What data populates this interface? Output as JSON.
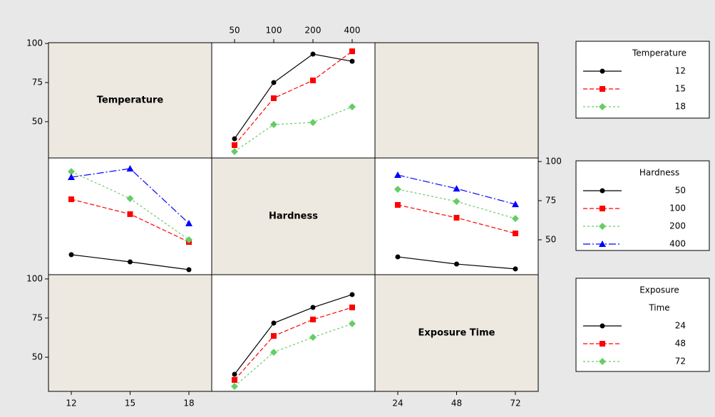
{
  "diagonal_labels": [
    "Temperature",
    "Hardness",
    "Exposure Time"
  ],
  "legends": [
    {
      "title": [
        "Temperature"
      ]
    },
    {
      "title": [
        "Hardness"
      ]
    },
    {
      "title": [
        "Exposure",
        "Time"
      ]
    }
  ],
  "chart_data": [
    {
      "type": "line",
      "categories": [
        50,
        100,
        200,
        400
      ],
      "ylim": [
        26.8,
        100.5
      ],
      "yticks": [
        50,
        75,
        100
      ],
      "series": [
        {
          "name": "12",
          "color": "#000000",
          "marker": "circle",
          "dash": "none",
          "values": [
            39.1,
            75,
            93.2,
            88.6
          ]
        },
        {
          "name": "15",
          "color": "#ff0000",
          "marker": "square",
          "dash": "6,3",
          "values": [
            35,
            65,
            76.4,
            95
          ]
        },
        {
          "name": "18",
          "color": "#66cc66",
          "marker": "diamond",
          "dash": "3,3",
          "values": [
            30.9,
            48.2,
            49.5,
            59.5
          ]
        }
      ]
    },
    {
      "type": "line",
      "categories": [
        12,
        15,
        18
      ],
      "ylim": [
        27.7,
        102.3
      ],
      "yticks": [
        50,
        75,
        100
      ],
      "ytick_side": "right",
      "series": [
        {
          "name": "50",
          "color": "#000000",
          "marker": "circle",
          "dash": "none",
          "values": [
            40.5,
            35.9,
            30.9
          ]
        },
        {
          "name": "100",
          "color": "#ff0000",
          "marker": "square",
          "dash": "6,3",
          "values": [
            75.9,
            66.4,
            48.6
          ]
        },
        {
          "name": "200",
          "color": "#66cc66",
          "marker": "diamond",
          "dash": "3,3",
          "values": [
            93.6,
            76.4,
            50
          ]
        },
        {
          "name": "400",
          "color": "#0000ff",
          "marker": "triangle",
          "dash": "10,3,2,3",
          "values": [
            90,
            95.5,
            60.5
          ]
        }
      ]
    },
    {
      "type": "line",
      "categories": [
        24,
        48,
        72
      ],
      "ylim": [
        27.7,
        102.3
      ],
      "series": [
        {
          "name": "50",
          "color": "#000000",
          "marker": "circle",
          "dash": "none",
          "values": [
            39.1,
            34.5,
            31.4
          ]
        },
        {
          "name": "100",
          "color": "#ff0000",
          "marker": "square",
          "dash": "6,3",
          "values": [
            72.3,
            64.1,
            54.1
          ]
        },
        {
          "name": "200",
          "color": "#66cc66",
          "marker": "diamond",
          "dash": "3,3",
          "values": [
            82.3,
            74.5,
            63.6
          ]
        },
        {
          "name": "400",
          "color": "#0000ff",
          "marker": "triangle",
          "dash": "10,3,2,3",
          "values": [
            91.4,
            82.7,
            72.7
          ]
        }
      ]
    },
    {
      "type": "line",
      "categories": [
        null,
        null,
        null,
        null
      ],
      "ylim": [
        28.2,
        102.7
      ],
      "yticks": [
        50,
        75,
        100
      ],
      "series": [
        {
          "name": "24",
          "color": "#000000",
          "marker": "circle",
          "dash": "none",
          "values": [
            39.1,
            71.8,
            81.8,
            90
          ]
        },
        {
          "name": "48",
          "color": "#ff0000",
          "marker": "square",
          "dash": "6,3",
          "values": [
            35.5,
            63.6,
            74.1,
            81.8
          ]
        },
        {
          "name": "72",
          "color": "#66cc66",
          "marker": "diamond",
          "dash": "3,3",
          "values": [
            31.4,
            53.2,
            62.7,
            71.4
          ]
        }
      ]
    }
  ]
}
